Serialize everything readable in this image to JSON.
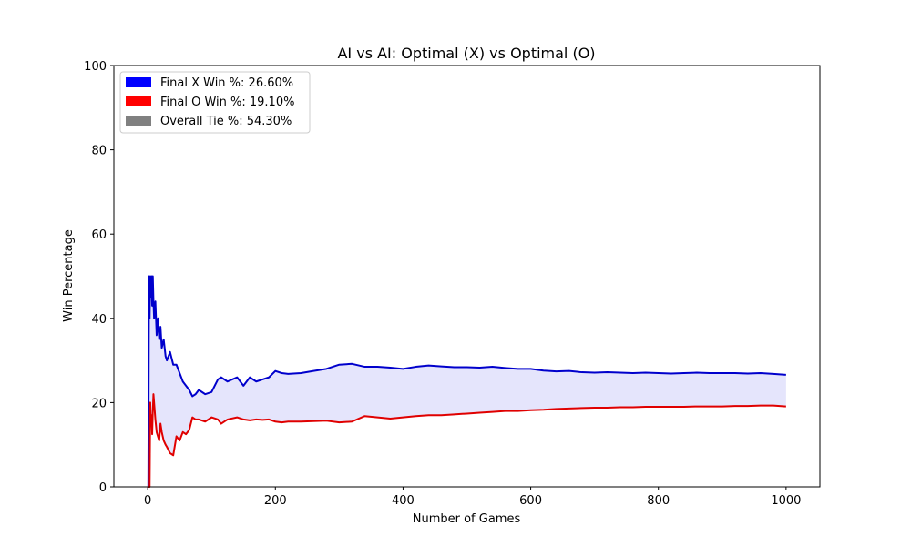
{
  "chart_data": {
    "type": "line",
    "title": "AI vs AI: Optimal (X) vs Optimal (O)",
    "xlabel": "Number of Games",
    "ylabel": "Win Percentage",
    "xlim": [
      -53,
      1053
    ],
    "ylim": [
      0,
      100
    ],
    "xticks": [
      0,
      200,
      400,
      600,
      800,
      1000
    ],
    "yticks": [
      0,
      20,
      40,
      60,
      80,
      100
    ],
    "grid": false,
    "legend_position": "upper-left",
    "legend": [
      {
        "label": "Final X Win %: 26.60%",
        "color": "#0000ff"
      },
      {
        "label": "Final O Win %: 19.10%",
        "color": "#ff0000"
      },
      {
        "label": "Overall Tie %: 54.30%",
        "color": "#808080"
      }
    ],
    "fill_between": {
      "color": "#e5e5fc"
    },
    "series": [
      {
        "color": "#0000cc",
        "x": [
          1,
          2,
          3,
          4,
          5,
          6,
          7,
          8,
          9,
          10,
          12,
          14,
          16,
          18,
          20,
          22,
          25,
          28,
          30,
          35,
          40,
          45,
          50,
          55,
          60,
          65,
          70,
          75,
          80,
          90,
          100,
          110,
          115,
          125,
          140,
          150,
          160,
          170,
          180,
          190,
          200,
          210,
          220,
          240,
          260,
          280,
          300,
          320,
          340,
          360,
          380,
          400,
          420,
          440,
          460,
          480,
          500,
          520,
          540,
          560,
          580,
          600,
          620,
          640,
          660,
          680,
          700,
          720,
          740,
          760,
          780,
          800,
          820,
          840,
          860,
          880,
          900,
          920,
          940,
          960,
          980,
          1000
        ],
        "y": [
          0,
          50,
          40,
          50,
          45,
          50,
          43,
          50,
          44,
          40,
          44,
          36,
          40,
          35,
          38,
          33,
          35,
          31,
          30,
          32,
          29,
          29,
          27,
          25,
          24,
          23,
          21.5,
          22,
          23,
          22,
          22.5,
          25.5,
          26,
          25,
          26,
          24,
          26,
          25,
          25.5,
          26,
          27.5,
          27,
          26.8,
          27,
          27.5,
          28,
          29,
          29.2,
          28.5,
          28.5,
          28.3,
          28,
          28.5,
          28.8,
          28.6,
          28.4,
          28.4,
          28.3,
          28.5,
          28.2,
          28,
          28,
          27.6,
          27.4,
          27.5,
          27.2,
          27.1,
          27.2,
          27.1,
          27,
          27.1,
          27,
          26.9,
          27,
          27.1,
          27,
          27,
          27,
          26.9,
          27,
          26.8,
          26.6
        ]
      },
      {
        "color": "#e00000",
        "x": [
          1,
          2,
          3,
          4,
          5,
          6,
          7,
          8,
          9,
          10,
          12,
          14,
          16,
          18,
          20,
          22,
          25,
          28,
          30,
          35,
          40,
          45,
          50,
          55,
          60,
          65,
          70,
          75,
          80,
          90,
          100,
          110,
          115,
          125,
          140,
          150,
          160,
          170,
          180,
          190,
          200,
          210,
          220,
          240,
          260,
          280,
          300,
          320,
          340,
          360,
          380,
          400,
          420,
          440,
          460,
          480,
          500,
          520,
          540,
          560,
          580,
          600,
          620,
          640,
          660,
          680,
          700,
          720,
          740,
          760,
          780,
          800,
          820,
          840,
          860,
          880,
          900,
          920,
          940,
          960,
          980,
          1000
        ],
        "y": [
          0,
          0,
          0,
          20,
          15,
          17,
          12.5,
          18,
          22,
          20,
          16,
          13,
          12,
          11,
          15,
          13,
          11,
          10,
          9.5,
          8,
          7.5,
          12,
          11,
          13,
          12.5,
          13.5,
          16.5,
          16,
          16,
          15.5,
          16.5,
          16,
          15,
          16,
          16.5,
          16,
          15.8,
          16,
          15.9,
          16,
          15.5,
          15.3,
          15.5,
          15.5,
          15.6,
          15.7,
          15.3,
          15.5,
          16.8,
          16.5,
          16.2,
          16.5,
          16.8,
          17,
          17,
          17.2,
          17.4,
          17.6,
          17.8,
          18,
          18,
          18.2,
          18.3,
          18.5,
          18.6,
          18.7,
          18.8,
          18.8,
          18.9,
          18.9,
          19,
          19,
          19,
          19,
          19.1,
          19.1,
          19.1,
          19.2,
          19.2,
          19.3,
          19.3,
          19.1
        ]
      }
    ]
  }
}
